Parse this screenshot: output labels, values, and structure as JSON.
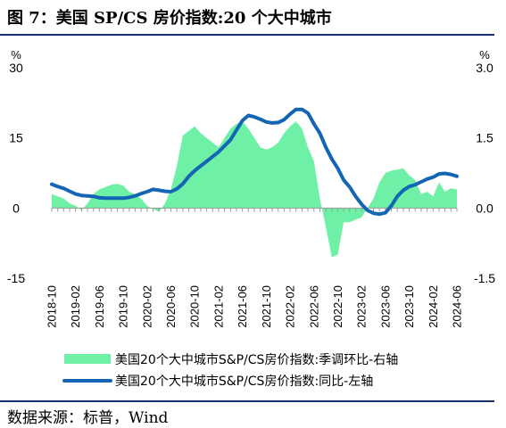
{
  "title": "图 7：美国 SP/CS 房价指数:20 个大中城市",
  "source": "数据来源：标普，Wind",
  "chart_data": {
    "type": "area+line",
    "left_axis": {
      "unit": "%",
      "ticks": [
        30,
        15,
        0,
        -15
      ],
      "tick_labels": [
        "30",
        "15",
        "0",
        "-15"
      ],
      "range": [
        -15,
        30
      ]
    },
    "right_axis": {
      "unit": "%",
      "ticks": [
        3.0,
        1.5,
        0.0,
        -1.5
      ],
      "tick_labels": [
        "3.0",
        "1.5",
        "0.0",
        "-1.5"
      ],
      "range": [
        -1.5,
        3.0
      ]
    },
    "x_tick_labels": [
      "2018-10",
      "2019-02",
      "2019-06",
      "2019-10",
      "2020-02",
      "2020-06",
      "2020-10",
      "2021-02",
      "2021-06",
      "2021-10",
      "2022-02",
      "2022-06",
      "2022-10",
      "2023-02",
      "2023-06",
      "2023-10",
      "2024-02",
      "2024-06"
    ],
    "months": [
      "2018-10",
      "2018-11",
      "2018-12",
      "2019-01",
      "2019-02",
      "2019-03",
      "2019-04",
      "2019-05",
      "2019-06",
      "2019-07",
      "2019-08",
      "2019-09",
      "2019-10",
      "2019-11",
      "2019-12",
      "2020-01",
      "2020-02",
      "2020-03",
      "2020-04",
      "2020-05",
      "2020-06",
      "2020-07",
      "2020-08",
      "2020-09",
      "2020-10",
      "2020-11",
      "2020-12",
      "2021-01",
      "2021-02",
      "2021-03",
      "2021-04",
      "2021-05",
      "2021-06",
      "2021-07",
      "2021-08",
      "2021-09",
      "2021-10",
      "2021-11",
      "2021-12",
      "2022-01",
      "2022-02",
      "2022-03",
      "2022-04",
      "2022-05",
      "2022-06",
      "2022-07",
      "2022-08",
      "2022-09",
      "2022-10",
      "2022-11",
      "2022-12",
      "2023-01",
      "2023-02",
      "2023-03",
      "2023-04",
      "2023-05",
      "2023-06",
      "2023-07",
      "2023-08",
      "2023-09",
      "2023-10",
      "2023-11",
      "2023-12",
      "2024-01",
      "2024-02",
      "2024-03",
      "2024-04",
      "2024-05",
      "2024-06"
    ],
    "series": [
      {
        "name": "美国20个大中城市S&P/CS房价指数:季调环比-右轴",
        "type": "area",
        "axis": "right",
        "color": "#6ef0a6",
        "values": [
          0.3,
          0.25,
          0.2,
          0.1,
          0.05,
          -0.05,
          0.1,
          0.3,
          0.4,
          0.45,
          0.5,
          0.52,
          0.48,
          0.35,
          0.3,
          0.2,
          0.05,
          -0.02,
          -0.08,
          0.1,
          0.4,
          0.9,
          1.55,
          1.65,
          1.75,
          1.6,
          1.5,
          1.4,
          1.3,
          1.5,
          1.7,
          1.8,
          1.85,
          1.7,
          1.5,
          1.3,
          1.25,
          1.3,
          1.4,
          1.6,
          1.75,
          1.85,
          1.7,
          1.3,
          1.0,
          0.2,
          -0.4,
          -1.05,
          -1.0,
          -0.3,
          -0.3,
          -0.25,
          -0.2,
          0.0,
          0.2,
          0.55,
          0.75,
          0.8,
          0.82,
          0.85,
          0.7,
          0.6,
          0.3,
          0.35,
          0.25,
          0.55,
          0.35,
          0.42,
          0.4
        ]
      },
      {
        "name": "美国20个大中城市S&P/CS房价指数:同比-左轴",
        "type": "line",
        "axis": "left",
        "color": "#1565b5",
        "values": [
          5.1,
          4.6,
          4.2,
          3.6,
          3.0,
          2.7,
          2.6,
          2.5,
          2.2,
          2.1,
          2.1,
          2.1,
          2.1,
          2.3,
          2.6,
          3.1,
          3.5,
          4.0,
          3.8,
          3.6,
          3.5,
          4.1,
          5.2,
          6.8,
          8.0,
          9.0,
          10.0,
          11.0,
          12.0,
          13.3,
          14.6,
          16.7,
          18.7,
          19.8,
          19.5,
          19.0,
          18.4,
          18.2,
          18.3,
          18.9,
          20.1,
          21.1,
          21.1,
          20.3,
          18.0,
          16.0,
          13.0,
          10.5,
          8.5,
          6.0,
          4.5,
          2.5,
          0.8,
          -0.5,
          -1.1,
          -1.3,
          -1.0,
          0.5,
          2.5,
          3.8,
          4.6,
          5.0,
          5.6,
          6.2,
          6.6,
          7.3,
          7.4,
          7.2,
          6.8
        ]
      }
    ],
    "grid": false,
    "legend_position": "bottom"
  }
}
